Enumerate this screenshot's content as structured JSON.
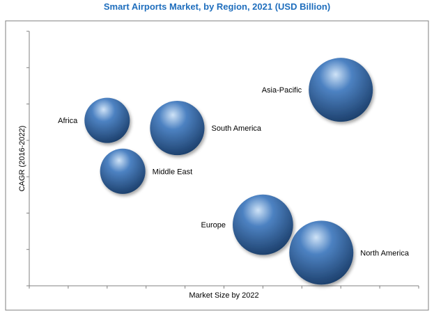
{
  "chart_data": {
    "type": "bubble",
    "title": "Smart Airports Market, by Region, 2021  (USD Billion)",
    "xlabel": "Market Size by 2022",
    "ylabel": "CAGR (2016-2022)",
    "xlim": [
      0,
      10
    ],
    "ylim": [
      0,
      10
    ],
    "grid": false,
    "ticks_labeled": false,
    "points": [
      {
        "label": "Africa",
        "x": 2.0,
        "y": 6.5,
        "size": 0.9
      },
      {
        "label": "South America",
        "x": 3.8,
        "y": 6.2,
        "size": 1.3
      },
      {
        "label": "Middle East",
        "x": 2.4,
        "y": 4.5,
        "size": 0.9
      },
      {
        "label": "Asia-Pacific",
        "x": 8.0,
        "y": 7.7,
        "size": 1.8
      },
      {
        "label": "Europe",
        "x": 6.0,
        "y": 2.4,
        "size": 1.6
      },
      {
        "label": "North America",
        "x": 7.5,
        "y": 1.3,
        "size": 1.8
      }
    ],
    "colors": {
      "title": "#1f6ebd",
      "bubble_highlight": "#cfe3f7",
      "bubble_mid": "#4d82c2",
      "bubble_dark": "#1c3f6b",
      "frame": "#7f7f7f",
      "axis": "#808080"
    }
  }
}
